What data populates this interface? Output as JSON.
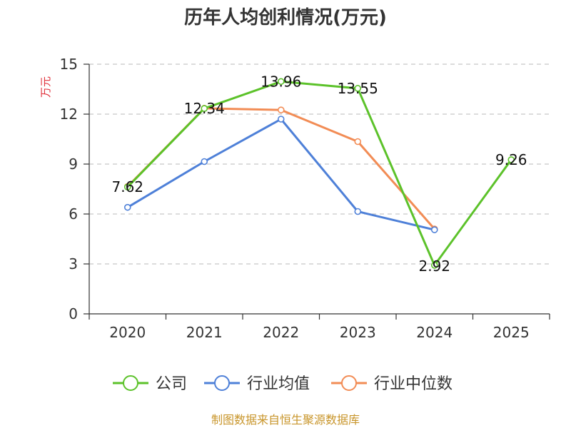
{
  "chart_data": {
    "type": "line",
    "title": "历年人均创利情况(万元)",
    "ylabel": "万元",
    "categories": [
      "2020",
      "2021",
      "2022",
      "2023",
      "2024",
      "2025"
    ],
    "ylim": [
      0,
      15
    ],
    "yticks": [
      0,
      3,
      6,
      9,
      12,
      15
    ],
    "grid": true,
    "legend_position": "bottom",
    "series": [
      {
        "name": "公司",
        "color": "#5cc22a",
        "values": [
          7.62,
          12.34,
          13.96,
          13.55,
          2.92,
          9.26
        ],
        "labels": [
          "7.62",
          "12.34",
          "13.96",
          "13.55",
          "2.92",
          "9.26"
        ]
      },
      {
        "name": "行业均值",
        "color": "#4e80d8",
        "values": [
          6.4,
          9.15,
          11.7,
          6.15,
          5.05,
          null
        ]
      },
      {
        "name": "行业中位数",
        "color": "#f28c55",
        "values": [
          7.65,
          12.35,
          12.25,
          10.35,
          5.1,
          null
        ]
      }
    ]
  },
  "source": "制图数据来自恒生聚源数据库"
}
